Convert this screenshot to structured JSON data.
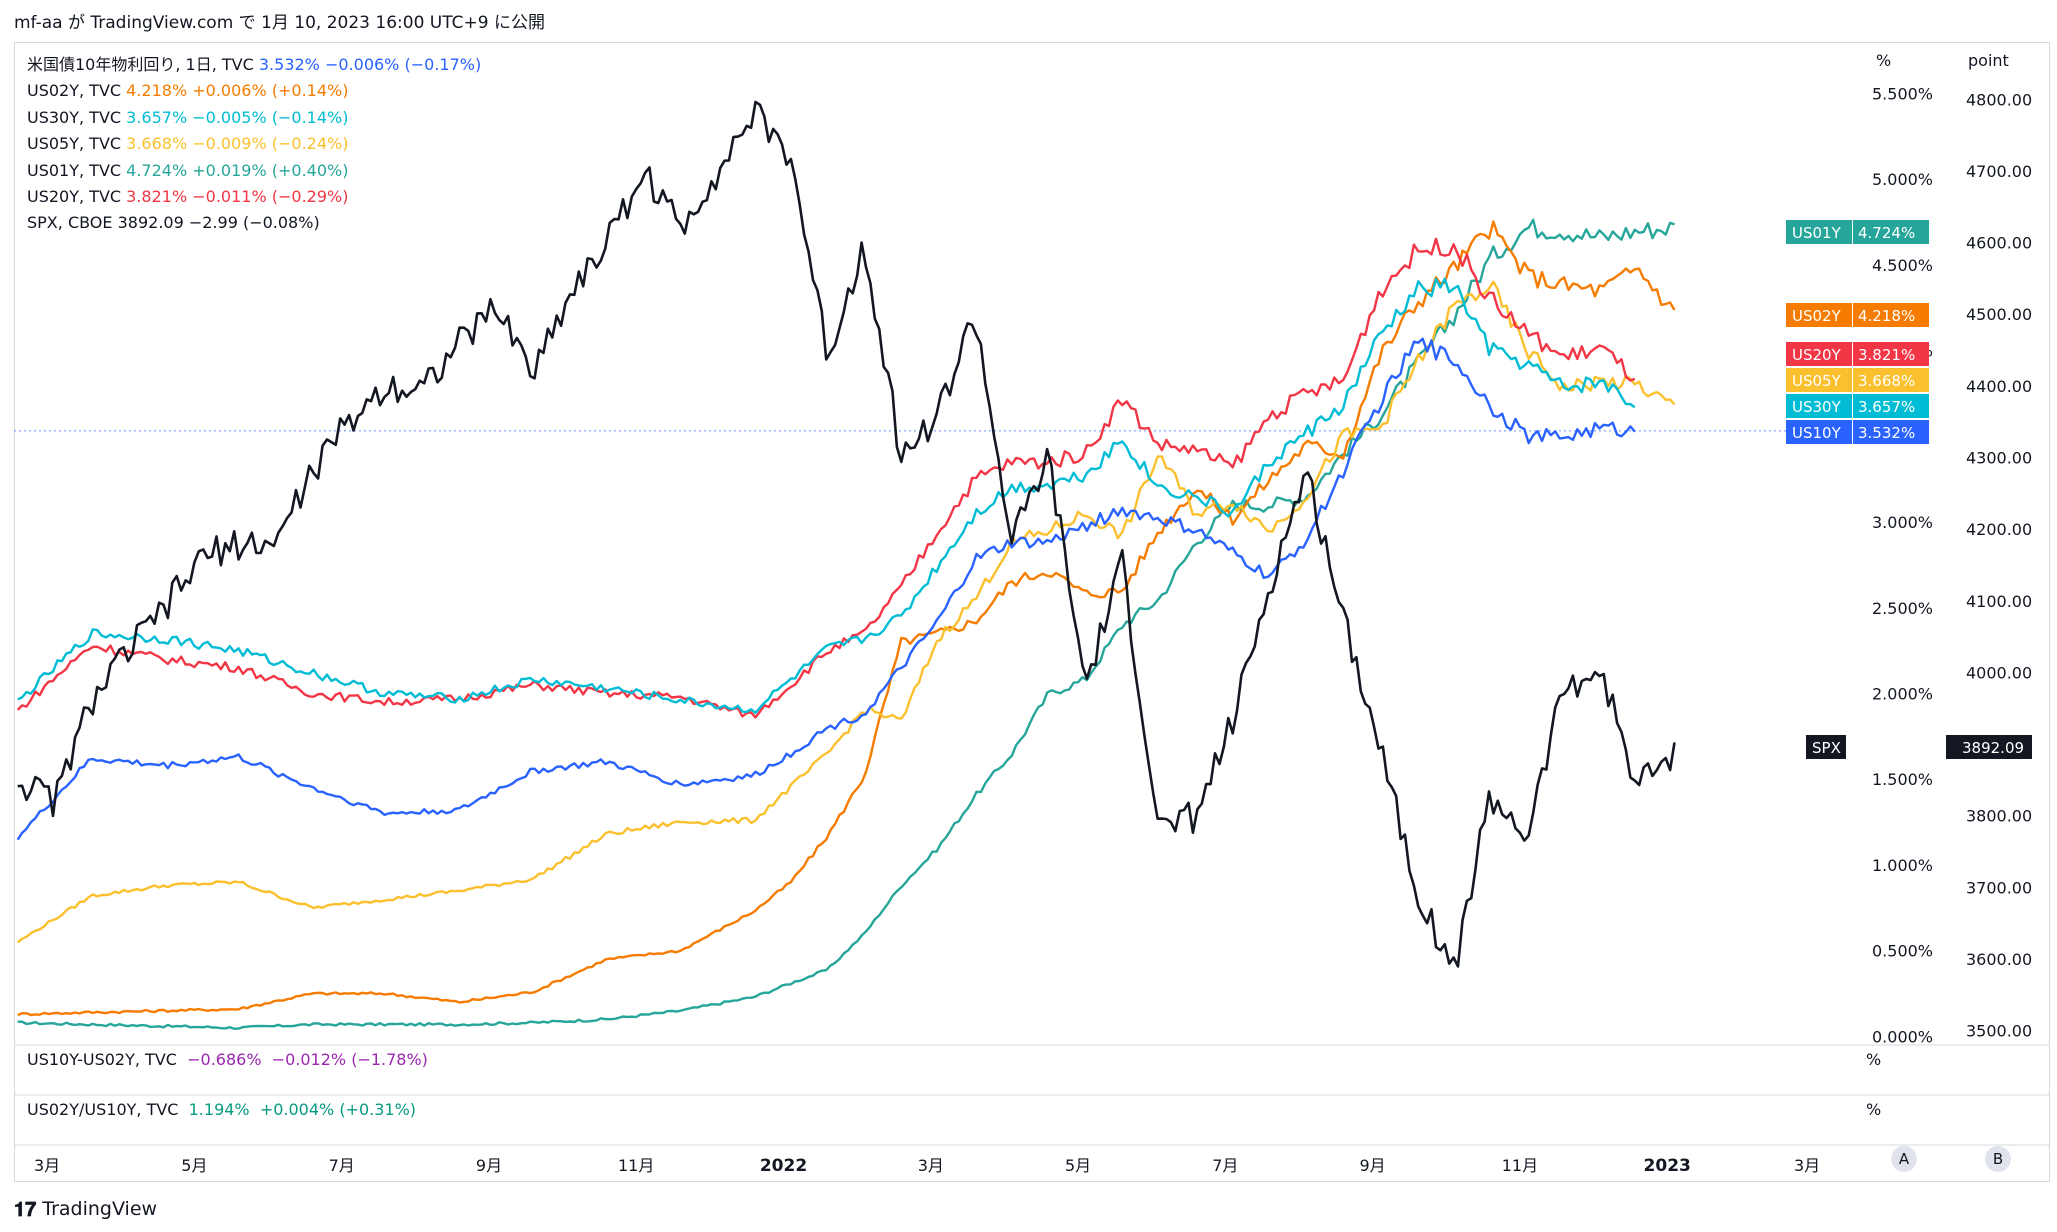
{
  "header": {
    "text": "mf-aa が TradingView.com で 1月 10, 2023 16:00 UTC+9 に公開"
  },
  "legend": [
    {
      "name": "米国債10年物利回り, 1日, TVC",
      "value": "3.532%",
      "change": "−0.006% (−0.17%)",
      "color": "#2962ff"
    },
    {
      "name": "US02Y, TVC",
      "value": "4.218%",
      "change": "+0.006% (+0.14%)",
      "color": "#f57c00"
    },
    {
      "name": "US30Y, TVC",
      "value": "3.657%",
      "change": "−0.005% (−0.14%)",
      "color": "#00bcd4"
    },
    {
      "name": "US05Y, TVC",
      "value": "3.668%",
      "change": "−0.009% (−0.24%)",
      "color": "#fbc02d"
    },
    {
      "name": "US01Y, TVC",
      "value": "4.724%",
      "change": "+0.019% (+0.40%)",
      "color": "#26a69a"
    },
    {
      "name": "US20Y, TVC",
      "value": "3.821%",
      "change": "−0.011% (−0.29%)",
      "color": "#f23645"
    },
    {
      "name": "SPX, CBOE",
      "value": "3892.09",
      "change": "−2.99 (−0.08%)",
      "color": "#131722"
    }
  ],
  "panes": [
    {
      "name": "US10Y-US02Y, TVC",
      "value": "−0.686%",
      "change": "−0.012% (−1.78%)",
      "color": "#9c27b0",
      "unit": "%"
    },
    {
      "name": "US02Y/US10Y, TVC",
      "value": "1.194%",
      "change": "+0.004% (+0.31%)",
      "color": "#089981",
      "unit": "%"
    }
  ],
  "axis_titles": {
    "left_unit": "%",
    "right_unit": "point"
  },
  "tags": [
    {
      "label": "US01Y",
      "value": "4.724%",
      "color": "#26a69a"
    },
    {
      "label": "US02Y",
      "value": "4.218%",
      "color": "#f57c00"
    },
    {
      "label": "US20Y",
      "value": "3.821%",
      "color": "#f23645"
    },
    {
      "label": "US05Y",
      "value": "3.668%",
      "color": "#fbc02d"
    },
    {
      "label": "US30Y",
      "value": "3.657%",
      "color": "#00bcd4"
    },
    {
      "label": "US10Y",
      "value": "3.532%",
      "color": "#2962ff"
    }
  ],
  "spx_tag": {
    "label": "SPX",
    "value": "3892.09"
  },
  "buttons": {
    "a": "A",
    "b": "B"
  },
  "footer": {
    "brand": "TradingView"
  },
  "chart_data": {
    "type": "line",
    "title": "",
    "left_axis": {
      "unit": "%",
      "ticks": [
        "0.000%",
        "0.500%",
        "1.000%",
        "1.500%",
        "2.000%",
        "2.500%",
        "3.000%",
        "4.000%",
        "4.500%",
        "5.000%",
        "5.500%"
      ],
      "range": [
        -0.05,
        5.8
      ]
    },
    "right_axis": {
      "unit": "point",
      "ticks": [
        "3500.00",
        "3600.00",
        "3700.00",
        "3800.00",
        "3900.00",
        "4000.00",
        "4100.00",
        "4200.00",
        "4300.00",
        "4400.00",
        "4500.00",
        "4600.00",
        "4700.00",
        "4800.00"
      ],
      "range": [
        3480,
        4880
      ]
    },
    "x_ticks": [
      {
        "label": "3月",
        "t": 0.4
      },
      {
        "label": "5月",
        "t": 2.4
      },
      {
        "label": "7月",
        "t": 4.4
      },
      {
        "label": "9月",
        "t": 6.4
      },
      {
        "label": "11月",
        "t": 8.4
      },
      {
        "label": "2022",
        "t": 10.4,
        "strong": true
      },
      {
        "label": "3月",
        "t": 12.4
      },
      {
        "label": "5月",
        "t": 14.4
      },
      {
        "label": "7月",
        "t": 16.4
      },
      {
        "label": "9月",
        "t": 18.4
      },
      {
        "label": "11月",
        "t": 20.4
      },
      {
        "label": "2023",
        "t": 22.4,
        "strong": true
      },
      {
        "label": "3月",
        "t": 24.3
      }
    ],
    "series": [
      {
        "name": "US01Y",
        "axis": "left",
        "color": "#26a69a",
        "t": [
          0,
          1,
          2,
          3,
          4,
          5,
          6,
          7,
          8,
          9,
          10,
          11,
          11.5,
          12,
          12.5,
          13,
          13.5,
          14,
          14.5,
          15,
          15.5,
          16,
          16.5,
          17,
          17.5,
          18,
          18.5,
          19,
          19.5,
          20,
          20.5,
          21,
          21.5,
          22,
          22.5
        ],
        "v": [
          0.08,
          0.07,
          0.06,
          0.05,
          0.07,
          0.07,
          0.07,
          0.08,
          0.1,
          0.15,
          0.23,
          0.39,
          0.6,
          0.88,
          1.1,
          1.4,
          1.65,
          2.0,
          2.08,
          2.4,
          2.55,
          2.88,
          3.1,
          3.1,
          3.15,
          3.4,
          3.62,
          3.92,
          4.2,
          4.54,
          4.72,
          4.7,
          4.66,
          4.7,
          4.72
        ]
      },
      {
        "name": "US02Y",
        "axis": "left",
        "color": "#f57c00",
        "t": [
          0,
          1,
          2,
          3,
          4,
          5,
          6,
          7,
          8,
          9,
          10,
          10.5,
          11,
          11.5,
          12,
          12.5,
          13,
          13.5,
          14,
          14.5,
          15,
          15.5,
          16,
          16.5,
          17,
          17.5,
          18,
          18.5,
          19,
          19.5,
          20,
          20.5,
          21,
          21.5,
          22,
          22.5
        ],
        "v": [
          0.13,
          0.14,
          0.15,
          0.16,
          0.25,
          0.25,
          0.2,
          0.26,
          0.45,
          0.5,
          0.73,
          0.9,
          1.17,
          1.52,
          2.3,
          2.35,
          2.42,
          2.65,
          2.72,
          2.58,
          2.6,
          2.95,
          3.2,
          3.02,
          3.25,
          3.45,
          3.4,
          3.97,
          4.28,
          4.48,
          4.72,
          4.44,
          4.38,
          4.35,
          4.48,
          4.22
        ]
      },
      {
        "name": "US05Y",
        "axis": "left",
        "color": "#fbc02d",
        "t": [
          0,
          1,
          2,
          3,
          4,
          5,
          6,
          7,
          8,
          9,
          10,
          11,
          11.5,
          12,
          12.5,
          13,
          13.5,
          14,
          14.5,
          15,
          15.5,
          16,
          16.5,
          17,
          17.5,
          18,
          18.5,
          19,
          19.5,
          20,
          20.5,
          21,
          21.5,
          22,
          22.5
        ],
        "v": [
          0.55,
          0.82,
          0.88,
          0.9,
          0.75,
          0.8,
          0.85,
          0.92,
          1.18,
          1.25,
          1.26,
          1.65,
          1.91,
          1.84,
          2.32,
          2.55,
          2.88,
          2.95,
          3.05,
          2.92,
          3.4,
          3.05,
          3.12,
          2.95,
          3.15,
          3.5,
          3.55,
          3.92,
          4.25,
          4.38,
          4.0,
          3.78,
          3.82,
          3.8,
          3.67
        ]
      },
      {
        "name": "US10Y",
        "axis": "left",
        "color": "#2962ff",
        "t": [
          0,
          1,
          2,
          3,
          4,
          5,
          6,
          7,
          8,
          9,
          10,
          10.5,
          11,
          11.5,
          12,
          12.5,
          13,
          13.5,
          14,
          14.5,
          15,
          15.5,
          16,
          16.5,
          17,
          17.5,
          18,
          18.5,
          19,
          19.5,
          20,
          20.5,
          21,
          21.5,
          22,
          22.5
        ],
        "v": [
          1.16,
          1.62,
          1.58,
          1.63,
          1.45,
          1.3,
          1.32,
          1.55,
          1.6,
          1.47,
          1.52,
          1.65,
          1.8,
          1.88,
          2.15,
          2.42,
          2.78,
          2.88,
          2.88,
          2.98,
          3.07,
          3.02,
          2.95,
          2.82,
          2.68,
          2.9,
          3.3,
          3.7,
          4.05,
          3.95,
          3.68,
          3.5,
          3.5,
          3.55,
          3.53
        ]
      },
      {
        "name": "US20Y",
        "axis": "left",
        "color": "#f23645",
        "t": [
          0,
          1,
          2,
          3,
          4,
          5,
          6,
          7,
          8,
          9,
          10,
          10.5,
          11,
          11.5,
          12,
          12.5,
          13,
          13.5,
          14,
          14.5,
          15,
          15.5,
          16,
          16.5,
          17,
          17.5,
          18,
          18.5,
          19,
          19.5,
          20,
          20.5,
          21,
          21.5,
          22,
          22.5
        ],
        "v": [
          1.9,
          2.28,
          2.2,
          2.15,
          2.0,
          1.95,
          1.97,
          2.05,
          2.0,
          1.98,
          1.87,
          2.05,
          2.25,
          2.35,
          2.62,
          2.95,
          3.25,
          3.35,
          3.35,
          3.4,
          3.72,
          3.45,
          3.42,
          3.32,
          3.62,
          3.75,
          3.82,
          4.35,
          4.58,
          4.62,
          4.3,
          4.1,
          3.96,
          4.02,
          3.82
        ]
      },
      {
        "name": "US30Y",
        "axis": "left",
        "color": "#00bcd4",
        "t": [
          0,
          1,
          2,
          3,
          4,
          5,
          6,
          7,
          8,
          9,
          10,
          10.5,
          11,
          11.5,
          12,
          12.5,
          13,
          13.5,
          14,
          14.5,
          15,
          15.5,
          16,
          16.5,
          17,
          17.5,
          18,
          18.5,
          19,
          19.5,
          20,
          20.5,
          21,
          21.5,
          22,
          22.5
        ],
        "v": [
          1.95,
          2.35,
          2.32,
          2.25,
          2.12,
          2.0,
          1.97,
          2.08,
          2.03,
          1.96,
          1.9,
          2.08,
          2.26,
          2.32,
          2.45,
          2.75,
          3.05,
          3.2,
          3.22,
          3.28,
          3.48,
          3.2,
          3.15,
          3.05,
          3.35,
          3.52,
          3.68,
          4.08,
          4.35,
          4.38,
          4.0,
          3.92,
          3.78,
          3.82,
          3.66
        ]
      },
      {
        "name": "SPX",
        "axis": "right",
        "color": "#131722",
        "t": [
          0,
          0.5,
          1,
          1.5,
          2,
          2.5,
          3,
          3.5,
          4,
          4.5,
          5,
          5.5,
          6,
          6.5,
          7,
          7.5,
          8,
          8.5,
          9,
          9.5,
          10,
          10.5,
          11,
          11.5,
          12,
          12.5,
          13,
          13.5,
          14,
          14.5,
          15,
          15.5,
          16,
          16.5,
          17,
          17.5,
          18,
          18.5,
          19,
          19.5,
          20,
          20.5,
          21,
          21.5,
          22,
          22.5
        ],
        "v": [
          3850,
          3820,
          3960,
          4030,
          4090,
          4160,
          4180,
          4180,
          4280,
          4350,
          4400,
          4400,
          4460,
          4510,
          4420,
          4530,
          4600,
          4700,
          4620,
          4700,
          4780,
          4720,
          4440,
          4600,
          4300,
          4360,
          4500,
          4180,
          4300,
          3980,
          4150,
          3780,
          3800,
          3930,
          4120,
          4280,
          4080,
          3900,
          3700,
          3580,
          3830,
          3770,
          3980,
          4000,
          3840,
          3892
        ]
      }
    ]
  }
}
